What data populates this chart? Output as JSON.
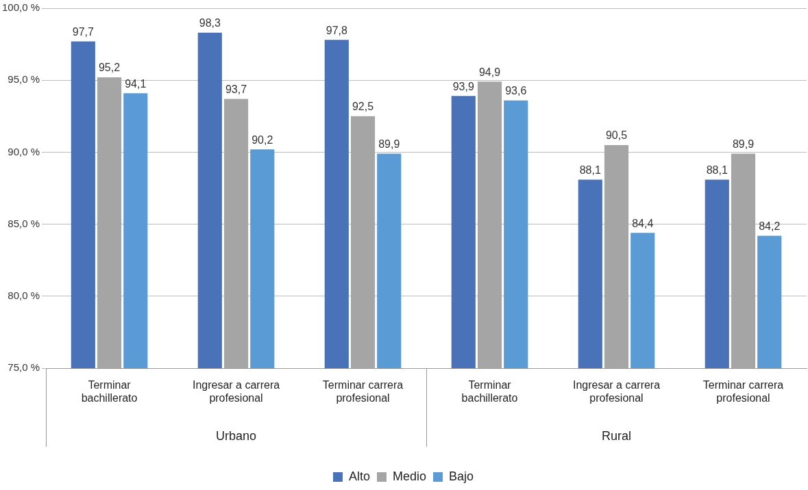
{
  "chart_data": {
    "type": "bar",
    "categories": [
      "Terminar bachillerato",
      "Ingresar a carrera profesional",
      "Terminar carrera profesional",
      "Terminar bachillerato",
      "Ingresar a carrera profesional",
      "Terminar carrera profesional"
    ],
    "series": [
      {
        "name": "Alto",
        "color": "#4a72b8",
        "values": [
          97.7,
          98.3,
          97.8,
          93.9,
          88.1,
          88.1
        ],
        "value_labels": [
          "97,7",
          "98,3",
          "97,8",
          "93,9",
          "88,1",
          "88,1"
        ]
      },
      {
        "name": "Medio",
        "color": "#a5a5a5",
        "values": [
          95.2,
          93.7,
          92.5,
          94.9,
          90.5,
          89.9
        ],
        "value_labels": [
          "95,2",
          "93,7",
          "92,5",
          "94,9",
          "90,5",
          "89,9"
        ]
      },
      {
        "name": "Bajo",
        "color": "#5b9bd5",
        "values": [
          94.1,
          90.2,
          89.9,
          93.6,
          84.4,
          84.2
        ],
        "value_labels": [
          "94,1",
          "90,2",
          "89,9",
          "93,6",
          "84,4",
          "84,2"
        ]
      }
    ],
    "ylim": [
      75,
      100
    ],
    "yticks": [
      {
        "value": 75,
        "label": "75,0 %"
      },
      {
        "value": 80,
        "label": "80,0 %"
      },
      {
        "value": 85,
        "label": "85,0 %"
      },
      {
        "value": 90,
        "label": "90,0 %"
      },
      {
        "value": 95,
        "label": "95,0 %"
      },
      {
        "value": 100,
        "label": "100,0 %"
      }
    ],
    "annotations": [
      "Urbano",
      "Rural"
    ],
    "grid": "y",
    "legend": "bottom"
  }
}
